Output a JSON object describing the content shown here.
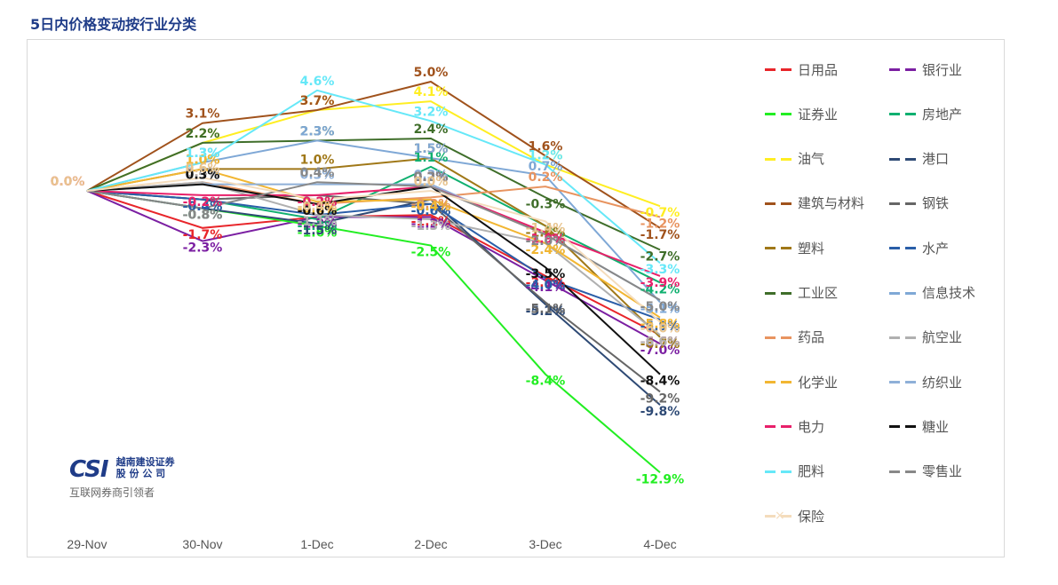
{
  "title": "5日内价格变动按行业分类",
  "logo": {
    "mark": "CSI",
    "name_line1": "越南建设证券",
    "name_line2": "股 份 公 司",
    "tagline": "互联网券商引领者"
  },
  "chart_data": {
    "type": "line",
    "title": "5日内价格变动按行业分类",
    "xlabel": "",
    "ylabel": "",
    "x": [
      "29-Nov",
      "30-Nov",
      "1-Dec",
      "2-Dec",
      "3-Dec",
      "4-Dec"
    ],
    "ylim": [
      -14,
      6
    ],
    "value_format": "percent_1dp",
    "legend_position": "right",
    "grid": false,
    "series": [
      {
        "name": "日用品",
        "color": "#e8252a",
        "values": [
          0.0,
          -1.7,
          -1.2,
          -1.1,
          -3.9,
          -6.6
        ]
      },
      {
        "name": "银行业",
        "color": "#7b1fa2",
        "values": [
          0.0,
          -2.3,
          -1.2,
          -1.2,
          -4.1,
          -7.0
        ]
      },
      {
        "name": "证券业",
        "color": "#22ee22",
        "values": [
          0.0,
          -0.8,
          -1.6,
          -2.5,
          -8.4,
          -12.9
        ]
      },
      {
        "name": "房地产",
        "color": "#10b070",
        "values": [
          0.0,
          -0.4,
          -1.3,
          1.1,
          -1.6,
          -4.2
        ]
      },
      {
        "name": "油气",
        "color": "#ffee22",
        "values": [
          0.0,
          2.2,
          3.7,
          4.1,
          1.2,
          -0.7
        ]
      },
      {
        "name": "港口",
        "color": "#2e4a75",
        "values": [
          0.0,
          -0.8,
          -1.5,
          -0.4,
          -5.2,
          -9.8
        ]
      },
      {
        "name": "建筑与材料",
        "color": "#a0521c",
        "values": [
          0.0,
          3.1,
          3.7,
          5.0,
          1.6,
          -1.7
        ]
      },
      {
        "name": "钢铁",
        "color": "#666666",
        "values": [
          0.0,
          -0.4,
          -0.2,
          -0.6,
          -5.1,
          -9.2
        ]
      },
      {
        "name": "塑料",
        "color": "#a07818",
        "values": [
          0.0,
          1.0,
          1.0,
          1.5,
          -1.6,
          -6.7
        ]
      },
      {
        "name": "水产",
        "color": "#2a5ea8",
        "values": [
          0.0,
          -0.4,
          -1.1,
          -0.6,
          -4.0,
          -5.9
        ]
      },
      {
        "name": "工业区",
        "color": "#3f6e2a",
        "values": [
          0.0,
          2.2,
          2.3,
          2.4,
          -0.3,
          -2.7
        ]
      },
      {
        "name": "信息技术",
        "color": "#7fa8d6",
        "values": [
          0.0,
          1.3,
          2.3,
          1.5,
          0.7,
          -5.1
        ]
      },
      {
        "name": "药品",
        "color": "#e89460",
        "values": [
          0.0,
          0.4,
          -0.6,
          -0.3,
          0.2,
          -1.2
        ]
      },
      {
        "name": "航空业",
        "color": "#b0b0b0",
        "values": [
          0.0,
          0.4,
          -1.1,
          -1.3,
          -2.4,
          -6.6
        ]
      },
      {
        "name": "化学业",
        "color": "#f2b632",
        "values": [
          0.0,
          1.0,
          -0.5,
          -0.4,
          -2.4,
          -5.8
        ]
      },
      {
        "name": "纺织业",
        "color": "#8fb0d8",
        "values": [
          0.0,
          0.3,
          0.3,
          0.3,
          -2.0,
          -5.0
        ]
      },
      {
        "name": "电力",
        "color": "#e8206a",
        "values": [
          0.0,
          -0.2,
          -0.2,
          0.2,
          -1.9,
          -3.9
        ]
      },
      {
        "name": "糖业",
        "color": "#111111",
        "values": [
          0.0,
          0.3,
          -0.6,
          0.2,
          -3.5,
          -8.4
        ]
      },
      {
        "name": "肥料",
        "color": "#66e8f8",
        "values": [
          0.0,
          1.3,
          4.6,
          3.2,
          1.2,
          -3.3
        ]
      },
      {
        "name": "零售业",
        "color": "#888888",
        "values": [
          0.0,
          -0.8,
          0.4,
          0.2,
          -2.0,
          -5.0
        ]
      },
      {
        "name": "保险",
        "color": "#f4dcbc",
        "values": [
          0.0,
          0.6,
          -0.4,
          0.0,
          -1.4,
          -6.0
        ]
      }
    ]
  }
}
